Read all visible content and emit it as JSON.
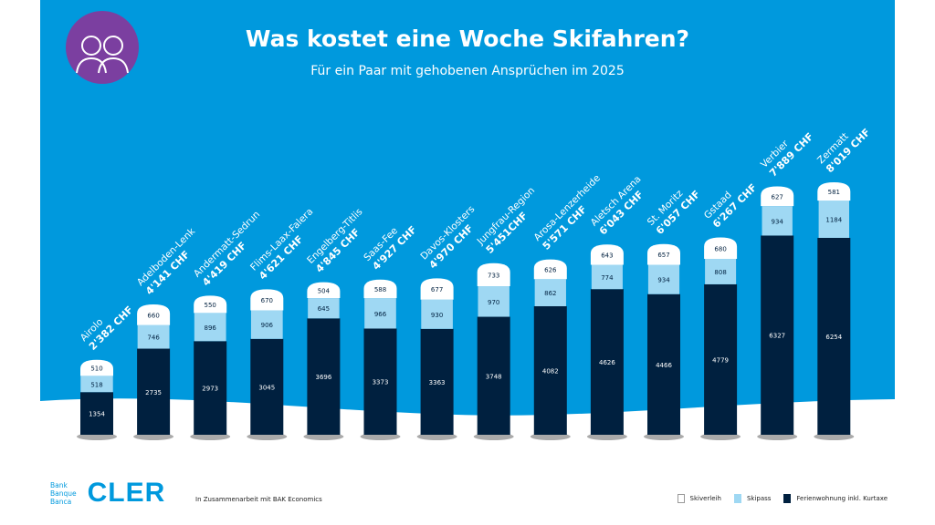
{
  "title": "Was kostet eine Woche Skifahren?",
  "subtitle": "Für ein Paar mit gehobenen Ansprüchen im 2025",
  "footer": {
    "logo_small": [
      "Bank",
      "Banque",
      "Banca"
    ],
    "logo_big": "CLER",
    "partner": "In Zusammenarbeit mit BAK Economics"
  },
  "colors": {
    "background": "#0099dd",
    "skiverleih": "#ffffff",
    "skipass": "#9fd8f3",
    "ferienwohnung": "#00203f",
    "icon_circle": "#7b3fa0"
  },
  "icon": "couple-icon",
  "chart_data": {
    "type": "bar",
    "stacked": true,
    "title": "Was kostet eine Woche Skifahren?",
    "legend_position": "bottom-right",
    "categories": [
      "Airolo",
      "Adelboden-Lenk",
      "Andermatt-Sedrun",
      "Flims-Laax-Falera",
      "Engelberg-Titlis",
      "Saas-Fee",
      "Davos-Klosters",
      "Jungfrau-Region",
      "Arosa-Lenzerheide",
      "Aletsch Arena",
      "St. Moritz",
      "Gstaad",
      "Verbier",
      "Zermatt"
    ],
    "totals_label": [
      "2'382 CHF",
      "4'141 CHF",
      "4'419 CHF",
      "4'621 CHF",
      "4'845 CHF",
      "4'927 CHF",
      "4'970 CHF",
      "5'451CHF",
      "5'571 CHF",
      "6'043 CHF",
      "6'057 CHF",
      "6'267 CHF",
      "7'889 CHF",
      "8'019 CHF"
    ],
    "series": [
      {
        "name": "Ferienwohnung inkl. Kurtaxe",
        "values": [
          1354,
          2735,
          2973,
          3045,
          3696,
          3373,
          3363,
          3748,
          4082,
          4626,
          4466,
          4779,
          6327,
          6254
        ]
      },
      {
        "name": "Skipass",
        "values": [
          518,
          746,
          896,
          906,
          645,
          966,
          930,
          970,
          862,
          774,
          934,
          808,
          934,
          1184
        ]
      },
      {
        "name": "Skiverleih",
        "values": [
          510,
          660,
          550,
          670,
          504,
          588,
          677,
          733,
          626,
          643,
          657,
          680,
          627,
          581
        ]
      }
    ]
  }
}
